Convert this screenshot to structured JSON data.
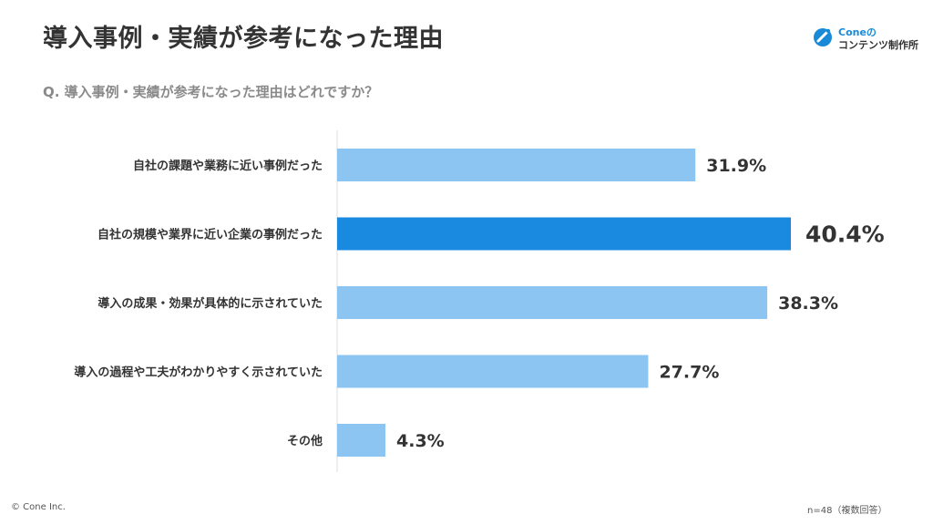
{
  "title": "導入事例・実績が参考になった理由",
  "question": "Q. 導入事例・実績が参考になった理由はどれですか？",
  "logo": {
    "line1": "Coneの",
    "line2": "コンテンツ制作所",
    "icon": "cone-logo-icon",
    "color": "#1a8ad8"
  },
  "footer": {
    "copyright": "© Cone Inc.",
    "sample_note": "n=48（複数回答）"
  },
  "colors": {
    "bar": "#8dc5f2",
    "bar_highlight": "#1a8ae0",
    "axis": "#dddddd"
  },
  "chart_data": {
    "type": "bar",
    "orientation": "horizontal",
    "categories": [
      "自社の課題や業務に近い事例だった",
      "自社の規模や業界に近い企業の事例だった",
      "導入の成果・効果が具体的に示されていた",
      "導入の過程や工夫がわかりやすく示されていた",
      "その他"
    ],
    "values": [
      31.9,
      40.4,
      38.3,
      27.7,
      4.3
    ],
    "value_labels": [
      "31.9%",
      "40.4%",
      "38.3%",
      "27.7%",
      "4.3%"
    ],
    "highlight_index": 1,
    "unit": "%",
    "xlim": [
      0,
      40.4
    ],
    "grid": false
  }
}
